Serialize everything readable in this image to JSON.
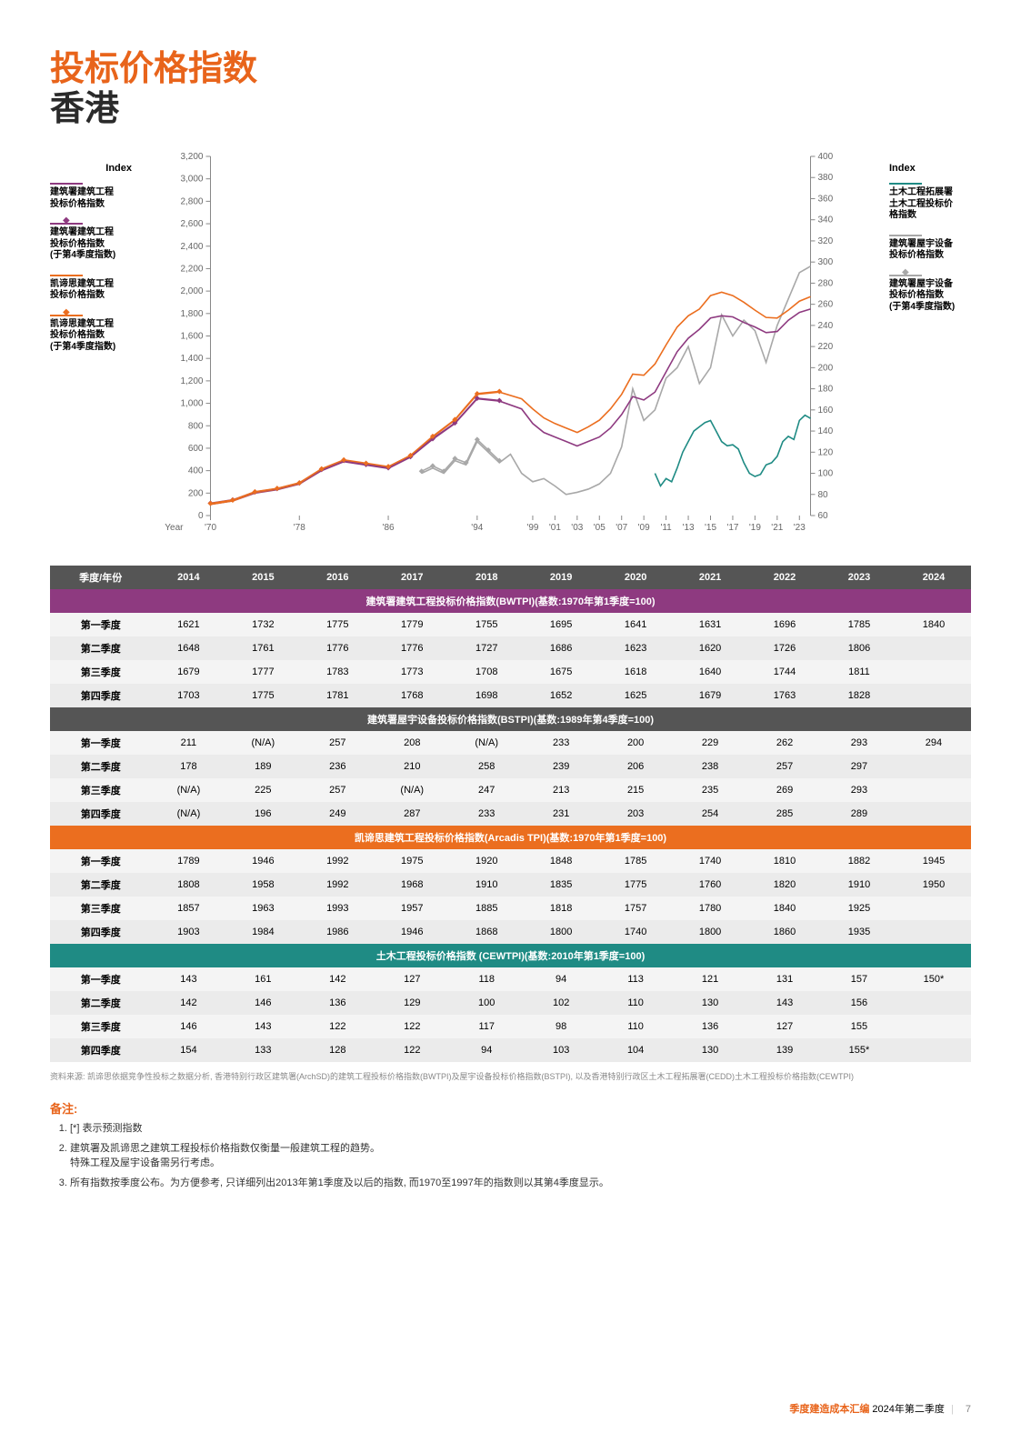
{
  "colors": {
    "orange": "#e8641b",
    "darkText": "#2a2a2a",
    "purple": "#8e3a80",
    "orangeLine": "#eb6e1f",
    "teal": "#1f8b84",
    "grey": "#a8a8a8",
    "lightGrey": "#c9c9c9",
    "headerBg": "#555555",
    "sectionPurple": "#8e3a80",
    "sectionOrange": "#eb6e1f",
    "sectionTeal": "#1f8b84",
    "stripeA": "#f4f4f4",
    "stripeB": "#ebebeb",
    "noteTitle": "#e8641b"
  },
  "title": {
    "line1": "投标价格指数",
    "line2": "香港"
  },
  "chart": {
    "leftAxisTitle": "Index",
    "rightAxisTitle": "Index",
    "xAxisLabel": "Year",
    "xTicks": [
      "'70",
      "'78",
      "'86",
      "'94",
      "'99",
      "'01",
      "'03",
      "'05",
      "'07",
      "'09",
      "'11",
      "'13",
      "'15",
      "'17",
      "'19",
      "'21",
      "'23"
    ],
    "xTickYears": [
      1970,
      1978,
      1986,
      1994,
      1999,
      2001,
      2003,
      2005,
      2007,
      2009,
      2011,
      2013,
      2015,
      2017,
      2019,
      2021,
      2023
    ],
    "leftMin": 0,
    "leftMax": 3200,
    "leftStep": 200,
    "rightMin": 60,
    "rightMax": 400,
    "rightStep": 20,
    "xMin": 1970,
    "xMax": 2024,
    "legendLeft": [
      {
        "label": "建筑署建筑工程\n投标价格指数",
        "color": "#8e3a80",
        "marker": false
      },
      {
        "label": "建筑署建筑工程\n投标价格指数\n(于第4季度指数)",
        "color": "#8e3a80",
        "marker": true
      },
      {
        "label": "凯谛思建筑工程\n投标价格指数",
        "color": "#eb6e1f",
        "marker": false
      },
      {
        "label": "凯谛思建筑工程\n投标价格指数\n(于第4季度指数)",
        "color": "#eb6e1f",
        "marker": true
      }
    ],
    "legendRight": [
      {
        "label": "土木工程拓展署\n土木工程投标价\n格指数",
        "color": "#1f8b84",
        "marker": false
      },
      {
        "label": "建筑署屋宇设备\n投标价格指数",
        "color": "#a8a8a8",
        "marker": false
      },
      {
        "label": "建筑署屋宇设备\n投标价格指数\n(于第4季度指数)",
        "color": "#a8a8a8",
        "marker": true
      }
    ],
    "series": {
      "purpleLine": {
        "color": "#8e3a80",
        "axis": "left",
        "pts": [
          [
            1970,
            100
          ],
          [
            1972,
            130
          ],
          [
            1974,
            200
          ],
          [
            1976,
            230
          ],
          [
            1978,
            280
          ],
          [
            1980,
            400
          ],
          [
            1982,
            480
          ],
          [
            1984,
            450
          ],
          [
            1986,
            420
          ],
          [
            1988,
            520
          ],
          [
            1990,
            680
          ],
          [
            1992,
            820
          ],
          [
            1994,
            1040
          ],
          [
            1996,
            1020
          ],
          [
            1998,
            950
          ],
          [
            1999,
            820
          ],
          [
            2000,
            740
          ],
          [
            2001,
            700
          ],
          [
            2002,
            660
          ],
          [
            2003,
            620
          ],
          [
            2004,
            660
          ],
          [
            2005,
            700
          ],
          [
            2006,
            780
          ],
          [
            2007,
            900
          ],
          [
            2008,
            1060
          ],
          [
            2009,
            1030
          ],
          [
            2010,
            1100
          ],
          [
            2011,
            1280
          ],
          [
            2012,
            1460
          ],
          [
            2013,
            1580
          ],
          [
            2014,
            1660
          ],
          [
            2015,
            1760
          ],
          [
            2016,
            1780
          ],
          [
            2017,
            1770
          ],
          [
            2018,
            1720
          ],
          [
            2019,
            1680
          ],
          [
            2020,
            1630
          ],
          [
            2021,
            1640
          ],
          [
            2022,
            1740
          ],
          [
            2023,
            1810
          ],
          [
            2024,
            1840
          ]
        ]
      },
      "purpleMarkers": {
        "color": "#8e3a80",
        "axis": "left",
        "pts": [
          [
            1970,
            110
          ],
          [
            1972,
            140
          ],
          [
            1974,
            210
          ],
          [
            1976,
            240
          ],
          [
            1978,
            290
          ],
          [
            1980,
            410
          ],
          [
            1982,
            490
          ],
          [
            1984,
            455
          ],
          [
            1986,
            425
          ],
          [
            1988,
            525
          ],
          [
            1990,
            685
          ],
          [
            1992,
            825
          ],
          [
            1994,
            1045
          ],
          [
            1996,
            1025
          ]
        ]
      },
      "orangeLine": {
        "color": "#eb6e1f",
        "axis": "left",
        "pts": [
          [
            1970,
            100
          ],
          [
            1972,
            130
          ],
          [
            1974,
            205
          ],
          [
            1976,
            235
          ],
          [
            1978,
            285
          ],
          [
            1980,
            410
          ],
          [
            1982,
            490
          ],
          [
            1984,
            460
          ],
          [
            1986,
            430
          ],
          [
            1988,
            530
          ],
          [
            1990,
            700
          ],
          [
            1992,
            850
          ],
          [
            1994,
            1080
          ],
          [
            1996,
            1100
          ],
          [
            1998,
            1040
          ],
          [
            1999,
            950
          ],
          [
            2000,
            870
          ],
          [
            2001,
            820
          ],
          [
            2002,
            780
          ],
          [
            2003,
            740
          ],
          [
            2004,
            790
          ],
          [
            2005,
            850
          ],
          [
            2006,
            950
          ],
          [
            2007,
            1080
          ],
          [
            2008,
            1260
          ],
          [
            2009,
            1250
          ],
          [
            2010,
            1350
          ],
          [
            2011,
            1520
          ],
          [
            2012,
            1680
          ],
          [
            2013,
            1780
          ],
          [
            2014,
            1840
          ],
          [
            2015,
            1960
          ],
          [
            2016,
            1990
          ],
          [
            2017,
            1960
          ],
          [
            2018,
            1900
          ],
          [
            2019,
            1830
          ],
          [
            2020,
            1765
          ],
          [
            2021,
            1760
          ],
          [
            2022,
            1830
          ],
          [
            2023,
            1910
          ],
          [
            2024,
            1950
          ]
        ]
      },
      "orangeMarkers": {
        "color": "#eb6e1f",
        "axis": "left",
        "pts": [
          [
            1970,
            108
          ],
          [
            1972,
            138
          ],
          [
            1974,
            212
          ],
          [
            1976,
            242
          ],
          [
            1978,
            292
          ],
          [
            1980,
            416
          ],
          [
            1982,
            496
          ],
          [
            1984,
            466
          ],
          [
            1986,
            436
          ],
          [
            1988,
            536
          ],
          [
            1990,
            706
          ],
          [
            1992,
            856
          ],
          [
            1994,
            1086
          ],
          [
            1996,
            1106
          ]
        ]
      },
      "greyLine": {
        "color": "#a8a8a8",
        "axis": "right",
        "pts": [
          [
            1989,
            100
          ],
          [
            1990,
            105
          ],
          [
            1991,
            100
          ],
          [
            1992,
            112
          ],
          [
            1993,
            108
          ],
          [
            1994,
            130
          ],
          [
            1995,
            120
          ],
          [
            1996,
            110
          ],
          [
            1997,
            118
          ],
          [
            1998,
            100
          ],
          [
            1999,
            92
          ],
          [
            2000,
            95
          ],
          [
            2001,
            88
          ],
          [
            2002,
            80
          ],
          [
            2003,
            82
          ],
          [
            2004,
            85
          ],
          [
            2005,
            90
          ],
          [
            2006,
            100
          ],
          [
            2007,
            125
          ],
          [
            2008,
            180
          ],
          [
            2009,
            150
          ],
          [
            2010,
            160
          ],
          [
            2011,
            190
          ],
          [
            2012,
            200
          ],
          [
            2013,
            220
          ],
          [
            2014,
            185
          ],
          [
            2015,
            200
          ],
          [
            2016,
            250
          ],
          [
            2017,
            230
          ],
          [
            2018,
            245
          ],
          [
            2019,
            235
          ],
          [
            2020,
            205
          ],
          [
            2021,
            240
          ],
          [
            2022,
            265
          ],
          [
            2023,
            290
          ],
          [
            2024,
            296
          ]
        ]
      },
      "greyMarkers": {
        "color": "#a8a8a8",
        "axis": "right",
        "pts": [
          [
            1989,
            102
          ],
          [
            1990,
            107
          ],
          [
            1991,
            102
          ],
          [
            1992,
            114
          ],
          [
            1993,
            110
          ],
          [
            1994,
            132
          ],
          [
            1995,
            122
          ],
          [
            1996,
            112
          ]
        ]
      },
      "tealLine": {
        "color": "#1f8b84",
        "axis": "right",
        "pts": [
          [
            2010,
            100
          ],
          [
            2010.5,
            88
          ],
          [
            2011,
            95
          ],
          [
            2011.5,
            92
          ],
          [
            2012,
            105
          ],
          [
            2012.5,
            120
          ],
          [
            2013,
            130
          ],
          [
            2013.5,
            140
          ],
          [
            2014,
            144
          ],
          [
            2014.5,
            148
          ],
          [
            2015,
            150
          ],
          [
            2015.5,
            140
          ],
          [
            2016,
            130
          ],
          [
            2016.5,
            126
          ],
          [
            2017,
            127
          ],
          [
            2017.5,
            123
          ],
          [
            2018,
            110
          ],
          [
            2018.5,
            100
          ],
          [
            2019,
            97
          ],
          [
            2019.5,
            99
          ],
          [
            2020,
            108
          ],
          [
            2020.5,
            110
          ],
          [
            2021,
            116
          ],
          [
            2021.5,
            130
          ],
          [
            2022,
            135
          ],
          [
            2022.5,
            132
          ],
          [
            2023,
            150
          ],
          [
            2023.5,
            155
          ],
          [
            2024,
            152
          ]
        ]
      }
    }
  },
  "table": {
    "headers": [
      "季度/年份",
      "2014",
      "2015",
      "2016",
      "2017",
      "2018",
      "2019",
      "2020",
      "2021",
      "2022",
      "2023",
      "2024"
    ],
    "sections": [
      {
        "title": "建筑署建筑工程投标价格指数(BWTPI)(基数:1970年第1季度=100)",
        "color": "#8e3a80",
        "rows": [
          [
            "第一季度",
            "1621",
            "1732",
            "1775",
            "1779",
            "1755",
            "1695",
            "1641",
            "1631",
            "1696",
            "1785",
            "1840"
          ],
          [
            "第二季度",
            "1648",
            "1761",
            "1776",
            "1776",
            "1727",
            "1686",
            "1623",
            "1620",
            "1726",
            "1806",
            ""
          ],
          [
            "第三季度",
            "1679",
            "1777",
            "1783",
            "1773",
            "1708",
            "1675",
            "1618",
            "1640",
            "1744",
            "1811",
            ""
          ],
          [
            "第四季度",
            "1703",
            "1775",
            "1781",
            "1768",
            "1698",
            "1652",
            "1625",
            "1679",
            "1763",
            "1828",
            ""
          ]
        ]
      },
      {
        "title": "建筑署屋宇设备投标价格指数(BSTPI)(基数:1989年第4季度=100)",
        "color": "#555555",
        "rows": [
          [
            "第一季度",
            "211",
            "(N/A)",
            "257",
            "208",
            "(N/A)",
            "233",
            "200",
            "229",
            "262",
            "293",
            "294"
          ],
          [
            "第二季度",
            "178",
            "189",
            "236",
            "210",
            "258",
            "239",
            "206",
            "238",
            "257",
            "297",
            ""
          ],
          [
            "第三季度",
            "(N/A)",
            "225",
            "257",
            "(N/A)",
            "247",
            "213",
            "215",
            "235",
            "269",
            "293",
            ""
          ],
          [
            "第四季度",
            "(N/A)",
            "196",
            "249",
            "287",
            "233",
            "231",
            "203",
            "254",
            "285",
            "289",
            ""
          ]
        ]
      },
      {
        "title": "凯谛思建筑工程投标价格指数(Arcadis TPI)(基数:1970年第1季度=100)",
        "color": "#eb6e1f",
        "rows": [
          [
            "第一季度",
            "1789",
            "1946",
            "1992",
            "1975",
            "1920",
            "1848",
            "1785",
            "1740",
            "1810",
            "1882",
            "1945"
          ],
          [
            "第二季度",
            "1808",
            "1958",
            "1992",
            "1968",
            "1910",
            "1835",
            "1775",
            "1760",
            "1820",
            "1910",
            "1950"
          ],
          [
            "第三季度",
            "1857",
            "1963",
            "1993",
            "1957",
            "1885",
            "1818",
            "1757",
            "1780",
            "1840",
            "1925",
            ""
          ],
          [
            "第四季度",
            "1903",
            "1984",
            "1986",
            "1946",
            "1868",
            "1800",
            "1740",
            "1800",
            "1860",
            "1935",
            ""
          ]
        ]
      },
      {
        "title": "土木工程投标价格指数 (CEWTPI)(基数:2010年第1季度=100)",
        "color": "#1f8b84",
        "rows": [
          [
            "第一季度",
            "143",
            "161",
            "142",
            "127",
            "118",
            "94",
            "113",
            "121",
            "131",
            "157",
            "150*"
          ],
          [
            "第二季度",
            "142",
            "146",
            "136",
            "129",
            "100",
            "102",
            "110",
            "130",
            "143",
            "156",
            ""
          ],
          [
            "第三季度",
            "146",
            "143",
            "122",
            "122",
            "117",
            "98",
            "110",
            "136",
            "127",
            "155",
            ""
          ],
          [
            "第四季度",
            "154",
            "133",
            "128",
            "122",
            "94",
            "103",
            "104",
            "130",
            "139",
            "155*",
            ""
          ]
        ]
      }
    ]
  },
  "source": "资料来源: 凯谛思依据竞争性投标之数据分析, 香港特别行政区建筑署(ArchSD)的建筑工程投标价格指数(BWTPI)及屋宇设备投标价格指数(BSTPI), 以及香港特别行政区土木工程拓展署(CEDD)土木工程投标价格指数(CEWTPI)",
  "notes": {
    "title": "备注:",
    "items": [
      "[*] 表示预测指数",
      "建筑署及凯谛思之建筑工程投标价格指数仅衡量一般建筑工程的趋势。\n特殊工程及屋宇设备需另行考虑。",
      "所有指数按季度公布。为方便参考, 只详细列出2013年第1季度及以后的指数, 而1970至1997年的指数则以其第4季度显示。"
    ]
  },
  "footer": {
    "doc": "季度建造成本汇编",
    "period": "2024年第二季度",
    "page": "7"
  }
}
